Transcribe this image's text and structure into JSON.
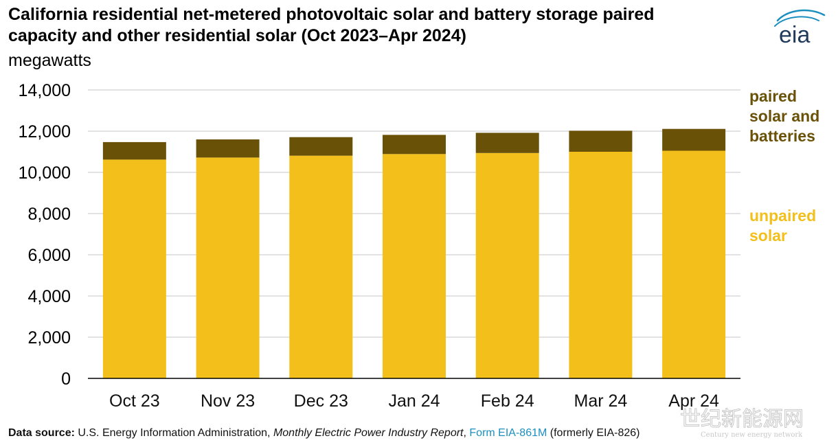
{
  "header": {
    "title_line1": "California residential net-metered photovoltaic solar and battery storage paired",
    "title_line2": "capacity and other residential solar (Oct 2023–Apr 2024)",
    "units": "megawatts"
  },
  "logo": {
    "text": "eia",
    "icon": "eia-logo-icon"
  },
  "source": {
    "label": "Data source:",
    "org": "U.S. Energy Information Administration,",
    "report": "Monthly Electric Power Industry Report",
    "sep": ",",
    "form": "Form EIA-861M",
    "note": "(formerly EIA-826)"
  },
  "watermark": {
    "text": "世纪新能源网",
    "sub": "Century new energy network"
  },
  "colors": {
    "unpaired": "#F3BF1B",
    "paired": "#6A5108",
    "grid": "#D9D9D9",
    "axis": "#000000"
  },
  "chart_data": {
    "type": "bar",
    "stacked": true,
    "categories": [
      "Oct 23",
      "Nov 23",
      "Dec 23",
      "Jan 24",
      "Feb 24",
      "Mar 24",
      "Apr 24"
    ],
    "series": [
      {
        "name": "unpaired solar",
        "color": "#F3BF1B",
        "values": [
          10620,
          10720,
          10810,
          10890,
          10940,
          11000,
          11050
        ]
      },
      {
        "name": "paired solar and batteries",
        "color": "#6A5108",
        "values": [
          850,
          880,
          900,
          930,
          980,
          1020,
          1060
        ]
      }
    ],
    "legend_labels": {
      "paired": [
        "paired",
        "solar and",
        "batteries"
      ],
      "unpaired": [
        "unpaired",
        "solar"
      ]
    },
    "ylim": [
      0,
      14000
    ],
    "yticks": [
      0,
      2000,
      4000,
      6000,
      8000,
      10000,
      12000,
      14000
    ],
    "ytick_labels": [
      "0",
      "2,000",
      "4,000",
      "6,000",
      "8,000",
      "10,000",
      "12,000",
      "14,000"
    ],
    "grid": true,
    "legend_position": "right"
  }
}
